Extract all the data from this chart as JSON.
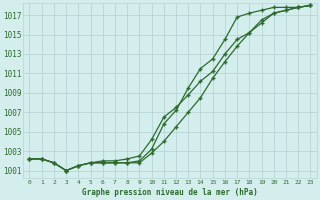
{
  "title": "Graphe pression niveau de la mer (hPa)",
  "background_color": "#d4eeee",
  "grid_color": "#b8d4d4",
  "line_color": "#2d6a2d",
  "x_labels": [
    "0",
    "1",
    "2",
    "3",
    "4",
    "5",
    "6",
    "7",
    "8",
    "9",
    "10",
    "11",
    "12",
    "13",
    "14",
    "15",
    "16",
    "17",
    "18",
    "19",
    "20",
    "21",
    "22",
    "23"
  ],
  "y_ticks": [
    1001,
    1003,
    1005,
    1007,
    1009,
    1011,
    1013,
    1015,
    1017
  ],
  "ylim": [
    1000.2,
    1018.2
  ],
  "xlim": [
    -0.5,
    23.5
  ],
  "series1": [
    1002.2,
    1002.2,
    1001.8,
    1001.0,
    1001.5,
    1001.8,
    1001.8,
    1001.8,
    1001.8,
    1001.8,
    1002.8,
    1004.0,
    1005.5,
    1007.0,
    1008.5,
    1010.5,
    1012.2,
    1013.8,
    1015.2,
    1016.5,
    1017.2,
    1017.5,
    1017.8,
    1018.0
  ],
  "series2": [
    1002.2,
    1002.2,
    1001.8,
    1001.0,
    1001.5,
    1001.8,
    1002.0,
    1002.0,
    1002.2,
    1002.5,
    1004.2,
    1006.5,
    1007.5,
    1008.8,
    1010.2,
    1011.2,
    1013.0,
    1014.5,
    1015.2,
    1016.2,
    1017.2,
    1017.5,
    1017.8,
    1018.0
  ],
  "series3": [
    1002.2,
    1002.2,
    1001.8,
    1001.0,
    1001.5,
    1001.8,
    1001.8,
    1001.8,
    1001.8,
    1002.0,
    1003.2,
    1005.8,
    1007.2,
    1009.5,
    1011.5,
    1012.5,
    1014.5,
    1016.8,
    1017.2,
    1017.5,
    1017.8,
    1017.8,
    1017.8,
    1018.0
  ]
}
